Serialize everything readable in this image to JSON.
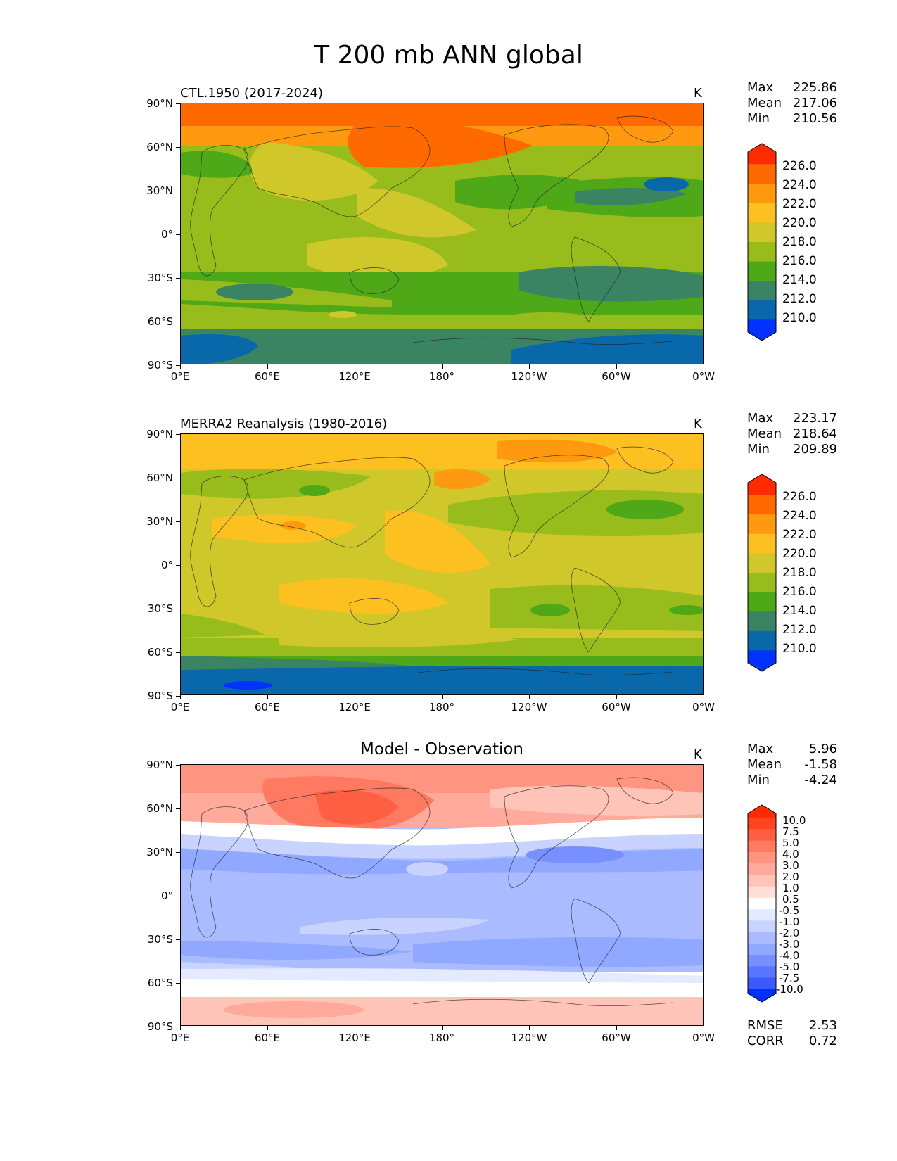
{
  "figure": {
    "title": "T 200 mb ANN global"
  },
  "axes": {
    "yticks": [
      "90°N",
      "60°N",
      "30°N",
      "0°",
      "30°S",
      "60°S",
      "90°S"
    ],
    "xticks": [
      "0°E",
      "60°E",
      "120°E",
      "180°",
      "120°W",
      "60°W",
      "0°W"
    ]
  },
  "panels": [
    {
      "title": "CTL.1950 (2017-2024)",
      "units": "K",
      "stats": [
        {
          "label": "Max",
          "value": "225.86"
        },
        {
          "label": "Mean",
          "value": "217.06"
        },
        {
          "label": "Min",
          "value": "210.56"
        }
      ],
      "colorbar": {
        "labels": [
          "226.0",
          "224.0",
          "222.0",
          "220.0",
          "218.0",
          "216.0",
          "214.0",
          "212.0",
          "210.0"
        ],
        "colors": [
          "#ff2a00",
          "#ff6a00",
          "#ff9a10",
          "#fcc020",
          "#d0c82a",
          "#98bc1c",
          "#4ea818",
          "#3a8464",
          "#0868aa",
          "#0033ff"
        ]
      }
    },
    {
      "title": "MERRA2 Reanalysis (1980-2016)",
      "units": "K",
      "stats": [
        {
          "label": "Max",
          "value": "223.17"
        },
        {
          "label": "Mean",
          "value": "218.64"
        },
        {
          "label": "Min",
          "value": "209.89"
        }
      ],
      "colorbar": {
        "labels": [
          "226.0",
          "224.0",
          "222.0",
          "220.0",
          "218.0",
          "216.0",
          "214.0",
          "212.0",
          "210.0"
        ],
        "colors": [
          "#ff2a00",
          "#ff6a00",
          "#ff9a10",
          "#fcc020",
          "#d0c82a",
          "#98bc1c",
          "#4ea818",
          "#3a8464",
          "#0868aa",
          "#0033ff"
        ]
      }
    },
    {
      "title": "Model - Observation",
      "units": "K",
      "stats": [
        {
          "label": "Max",
          "value": "5.96"
        },
        {
          "label": "Mean",
          "value": "-1.58"
        },
        {
          "label": "Min",
          "value": "-4.24"
        }
      ],
      "colorbar": {
        "labels": [
          "10.0",
          "7.5",
          "5.0",
          "4.0",
          "3.0",
          "2.0",
          "1.0",
          "0.5",
          "-0.5",
          "-1.0",
          "-2.0",
          "-3.0",
          "-4.0",
          "-5.0",
          "-7.5",
          "-10.0"
        ],
        "colors": [
          "#ff2a00",
          "#ff4422",
          "#ff6044",
          "#ff7a60",
          "#ff9480",
          "#ffaa9a",
          "#ffc4b8",
          "#ffe0d8",
          "#ffffff",
          "#e4eaff",
          "#c8d4ff",
          "#aabcff",
          "#90a8ff",
          "#7890ff",
          "#5a76ff",
          "#3a5aff",
          "#0030ff"
        ]
      },
      "footer": [
        {
          "label": "RMSE",
          "value": "2.53"
        },
        {
          "label": "CORR",
          "value": "0.72"
        }
      ]
    }
  ]
}
